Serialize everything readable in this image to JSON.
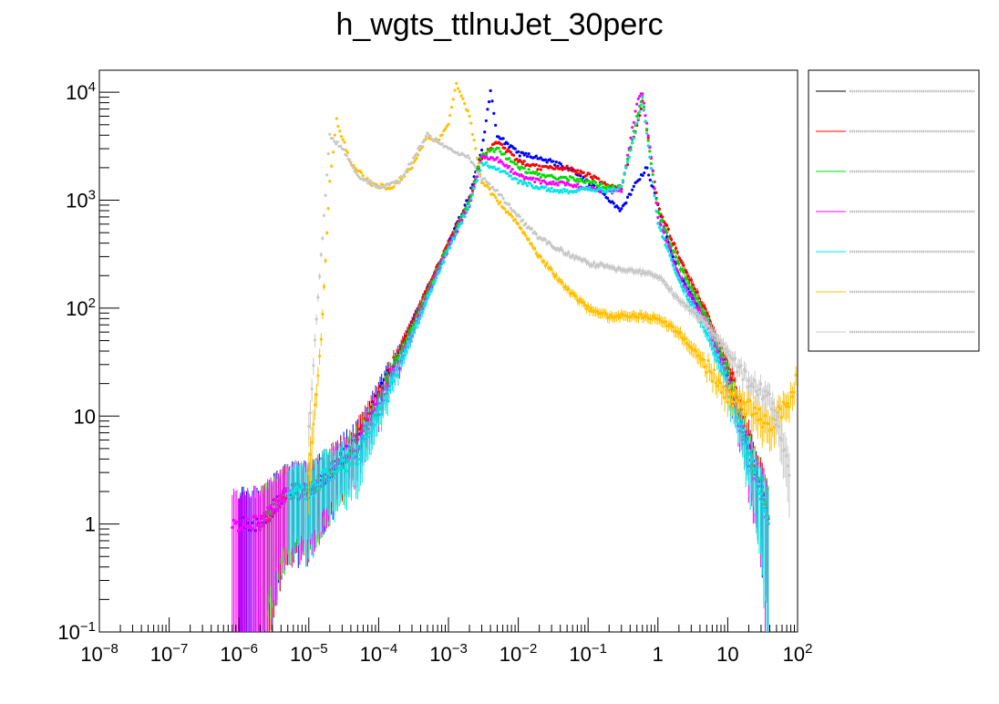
{
  "chart_data": {
    "type": "scatter",
    "title": "h_wgts_ttlnuJet_30perc",
    "xscale": "log",
    "yscale": "log",
    "xlim": [
      1e-08,
      100
    ],
    "ylim": [
      0.1,
      16000
    ],
    "grid": false,
    "legend_position": "right",
    "x_tick_labels": [
      {
        "base": "10",
        "exp": "−8",
        "value": 1e-08
      },
      {
        "base": "10",
        "exp": "−7",
        "value": 1e-07
      },
      {
        "base": "10",
        "exp": "−6",
        "value": 1e-06
      },
      {
        "base": "10",
        "exp": "−5",
        "value": 1e-05
      },
      {
        "base": "10",
        "exp": "−4",
        "value": 0.0001
      },
      {
        "base": "10",
        "exp": "−3",
        "value": 0.001
      },
      {
        "base": "10",
        "exp": "−2",
        "value": 0.01
      },
      {
        "base": "10",
        "exp": "−1",
        "value": 0.1
      },
      {
        "base": "1",
        "exp": "",
        "value": 1
      },
      {
        "base": "10",
        "exp": "",
        "value": 10
      },
      {
        "base": "10",
        "exp": "2",
        "value": 100
      }
    ],
    "y_tick_labels": [
      {
        "base": "10",
        "exp": "−1",
        "value": 0.1
      },
      {
        "base": "1",
        "exp": "",
        "value": 1
      },
      {
        "base": "10",
        "exp": "",
        "value": 10
      },
      {
        "base": "10",
        "exp": "2",
        "value": 100
      },
      {
        "base": "10",
        "exp": "3",
        "value": 1000
      },
      {
        "base": "10",
        "exp": "4",
        "value": 10000
      }
    ],
    "series": [
      {
        "color": "#0000ff",
        "x": [
          1e-06,
          2e-06,
          5e-06,
          1e-05,
          2e-05,
          5e-05,
          0.0001,
          0.0002,
          0.0005,
          0.001,
          0.002,
          0.003,
          0.004,
          0.005,
          0.01,
          0.02,
          0.05,
          0.1,
          0.2,
          0.3,
          0.5,
          0.7,
          1,
          2,
          5,
          10,
          20,
          40
        ],
        "y": [
          1,
          1,
          2,
          2,
          3,
          6,
          15,
          40,
          150,
          400,
          1100,
          3000,
          10000,
          4000,
          2700,
          2500,
          2000,
          1500,
          1000,
          800,
          1500,
          2000,
          900,
          200,
          80,
          25,
          5,
          1
        ]
      },
      {
        "color": "#ff0000",
        "x": [
          2e-06,
          5e-06,
          1e-05,
          2e-05,
          5e-05,
          0.0001,
          0.0002,
          0.0005,
          0.001,
          0.002,
          0.003,
          0.005,
          0.01,
          0.02,
          0.05,
          0.1,
          0.2,
          0.3,
          0.5,
          0.6,
          0.8,
          1,
          2,
          5,
          10,
          20,
          40
        ],
        "y": [
          1,
          2,
          2,
          3,
          6,
          15,
          40,
          150,
          400,
          1000,
          2500,
          3500,
          2300,
          2000,
          2000,
          1700,
          1400,
          1300,
          5000,
          8000,
          2500,
          900,
          300,
          90,
          30,
          6,
          1
        ]
      },
      {
        "color": "#00dd00",
        "x": [
          2e-06,
          5e-06,
          1e-05,
          2e-05,
          5e-05,
          0.0001,
          0.0002,
          0.0005,
          0.001,
          0.002,
          0.003,
          0.005,
          0.01,
          0.02,
          0.05,
          0.1,
          0.2,
          0.3,
          0.5,
          0.6,
          0.8,
          1,
          2,
          5,
          10,
          20,
          40
        ],
        "y": [
          1,
          2,
          2,
          3,
          5,
          13,
          35,
          140,
          380,
          1000,
          2700,
          3000,
          2000,
          1700,
          1600,
          1500,
          1300,
          1300,
          6000,
          9000,
          2200,
          800,
          250,
          80,
          25,
          5,
          1
        ]
      },
      {
        "color": "#ff00ff",
        "x": [
          8e-07,
          2e-06,
          5e-06,
          1e-05,
          2e-05,
          5e-05,
          0.0001,
          0.0002,
          0.0005,
          0.001,
          0.002,
          0.003,
          0.005,
          0.01,
          0.02,
          0.05,
          0.1,
          0.2,
          0.3,
          0.5,
          0.6,
          0.8,
          1,
          2,
          5,
          10,
          20,
          40
        ],
        "y": [
          1,
          1,
          2,
          2,
          3,
          5,
          12,
          30,
          130,
          360,
          900,
          2500,
          2400,
          1700,
          1500,
          1400,
          1300,
          1200,
          1200,
          8000,
          10000,
          2500,
          700,
          200,
          70,
          20,
          4,
          1
        ]
      },
      {
        "color": "#00e5e5",
        "x": [
          5e-06,
          1e-05,
          2e-05,
          5e-05,
          0.0001,
          0.0002,
          0.0005,
          0.001,
          0.002,
          0.003,
          0.005,
          0.01,
          0.02,
          0.05,
          0.1,
          0.2,
          0.3,
          0.5,
          0.6,
          0.8,
          1,
          2,
          5,
          10,
          20,
          40
        ],
        "y": [
          2,
          2,
          3,
          4,
          10,
          30,
          120,
          350,
          900,
          2200,
          2000,
          1500,
          1300,
          1200,
          1300,
          1200,
          1300,
          5000,
          9000,
          2000,
          600,
          180,
          60,
          18,
          4,
          1
        ]
      },
      {
        "color": "#ffc000",
        "x": [
          1e-05,
          1.5e-05,
          2e-05,
          2.5e-05,
          4e-05,
          8e-05,
          0.00015,
          0.0003,
          0.0005,
          0.0007,
          0.001,
          0.0013,
          0.002,
          0.003,
          0.005,
          0.01,
          0.02,
          0.05,
          0.1,
          0.2,
          0.5,
          1,
          2,
          5,
          10,
          20,
          40,
          80,
          100
        ],
        "y": [
          3,
          50,
          1500,
          5500,
          2200,
          1400,
          1300,
          2000,
          4000,
          3500,
          5000,
          12000,
          6000,
          1500,
          1000,
          600,
          300,
          150,
          100,
          85,
          85,
          80,
          60,
          30,
          15,
          12,
          8,
          15,
          25
        ]
      },
      {
        "color": "#c8c8c8",
        "x": [
          1e-05,
          1.5e-05,
          2e-05,
          3e-05,
          5e-05,
          0.0001,
          0.0002,
          0.0005,
          0.001,
          0.002,
          0.003,
          0.005,
          0.01,
          0.02,
          0.05,
          0.1,
          0.2,
          0.5,
          1,
          2,
          5,
          10,
          20,
          40,
          80
        ],
        "y": [
          8,
          300,
          4000,
          3000,
          1700,
          1300,
          1500,
          4000,
          3000,
          2500,
          1600,
          1200,
          700,
          450,
          320,
          260,
          240,
          220,
          200,
          120,
          70,
          40,
          20,
          15,
          3
        ]
      }
    ]
  }
}
